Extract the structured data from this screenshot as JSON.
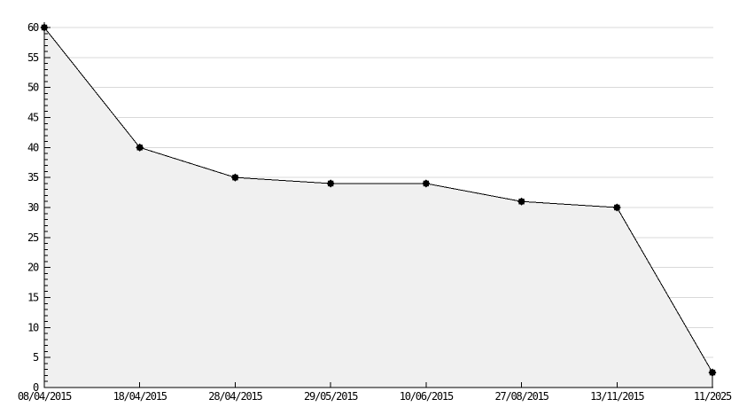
{
  "page": {
    "background": "#ffffff"
  },
  "chart_data": {
    "type": "area",
    "title": "",
    "xlabel": "",
    "ylabel": "",
    "categories": [
      "08/04/2015",
      "18/04/2015",
      "28/04/2015",
      "29/05/2015",
      "10/06/2015",
      "27/08/2015",
      "13/11/2015",
      "11/2025"
    ],
    "series": [
      {
        "name": "value",
        "values": [
          60,
          40,
          35,
          34,
          34,
          31,
          30,
          2.5
        ]
      }
    ],
    "ylim": [
      0,
      62
    ],
    "y_ticks": [
      0,
      5,
      10,
      15,
      20,
      25,
      30,
      35,
      40,
      45,
      50,
      55,
      60
    ],
    "y_minor_tick_step": 1,
    "grid": "horizontal-major",
    "legend": "none",
    "marker_shape": "8-point-star",
    "colors": {
      "line": "#000000",
      "marker": "#000000",
      "area_fill": "#f0f0f0",
      "gridline": "#d9d9d9",
      "axis": "#000000",
      "text": "#000000",
      "background": "#ffffff"
    }
  }
}
